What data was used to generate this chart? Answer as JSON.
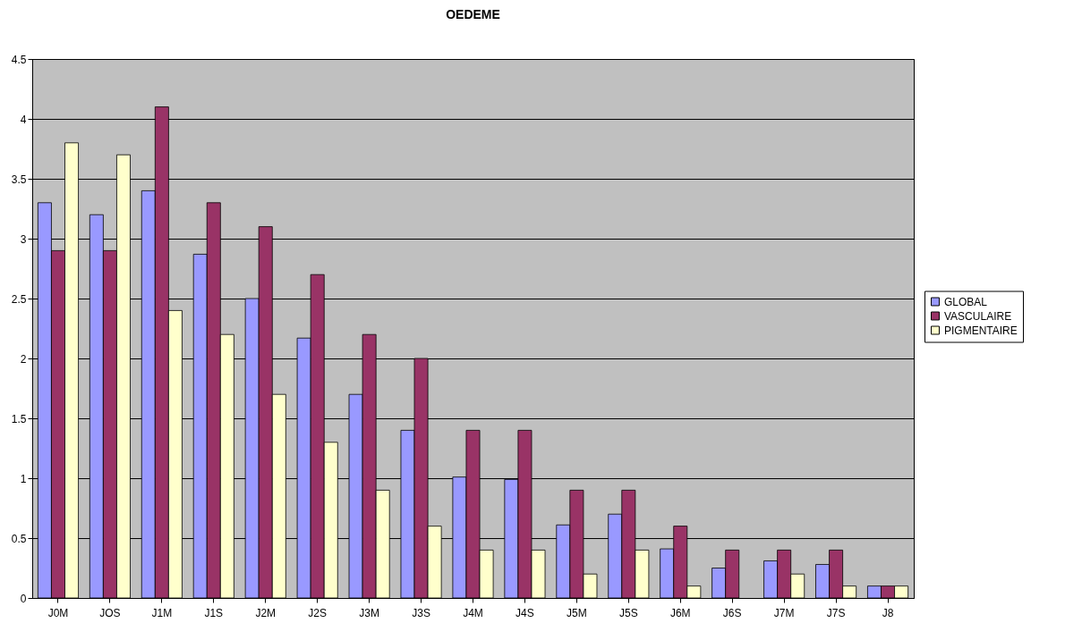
{
  "chart_data": {
    "type": "bar",
    "title": "OEDEME",
    "categories": [
      "J0M",
      "JOS",
      "J1M",
      "J1S",
      "J2M",
      "J2S",
      "J3M",
      "J3S",
      "J4M",
      "J4S",
      "J5M",
      "J5S",
      "J6M",
      "J6S",
      "J7M",
      "J7S",
      "J8"
    ],
    "series": [
      {
        "name": "GLOBAL",
        "color": "#9999ff",
        "values": [
          3.3,
          3.2,
          3.4,
          2.87,
          2.5,
          2.17,
          1.7,
          1.4,
          1.01,
          0.99,
          0.61,
          0.7,
          0.41,
          0.25,
          0.31,
          0.28,
          0.1
        ]
      },
      {
        "name": "VASCULAIRE",
        "color": "#993366",
        "values": [
          2.9,
          2.9,
          4.1,
          3.3,
          3.1,
          2.7,
          2.2,
          2.0,
          1.4,
          1.4,
          0.9,
          0.9,
          0.6,
          0.4,
          0.4,
          0.4,
          0.1
        ]
      },
      {
        "name": "PIGMENTAIRE",
        "color": "#ffffcc",
        "values": [
          3.8,
          3.7,
          2.4,
          2.2,
          1.7,
          1.3,
          0.9,
          0.6,
          0.4,
          0.4,
          0.2,
          0.4,
          0.1,
          0,
          0.2,
          0.1,
          0.1
        ]
      }
    ],
    "ylim": [
      0,
      4.5
    ],
    "yticks": [
      0,
      0.5,
      1,
      1.5,
      2,
      2.5,
      3,
      3.5,
      4,
      4.5
    ],
    "grid": "y",
    "legend": "right"
  }
}
